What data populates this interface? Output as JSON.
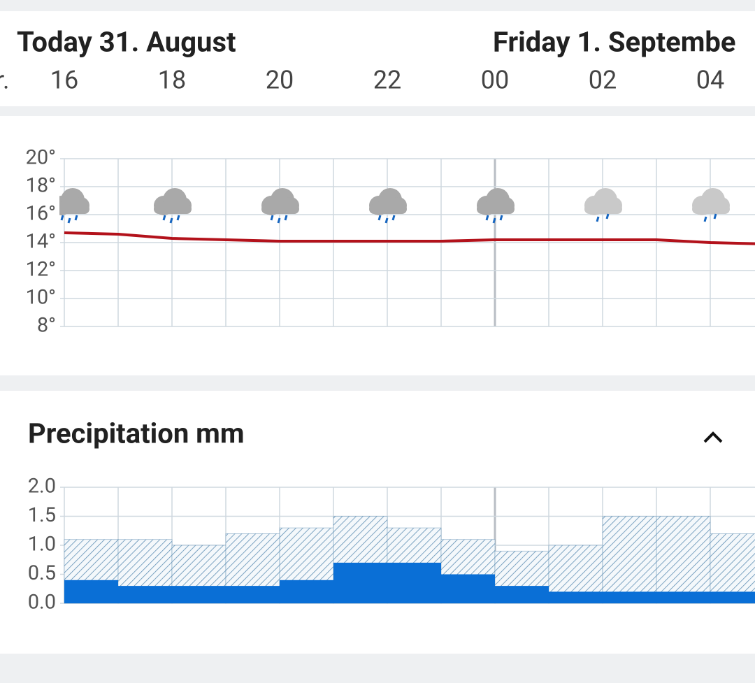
{
  "header": {
    "day_labels": [
      "Today 31. August",
      "Friday 1. Septembe"
    ],
    "hour_unit": "r.",
    "hours": [
      "16",
      "18",
      "20",
      "22",
      "00",
      "02",
      "04"
    ]
  },
  "temperature_chart": {
    "type": "line",
    "color": "#b3121b",
    "values": [
      14.7,
      14.6,
      14.3,
      14.2,
      14.1,
      14.1,
      14.1,
      14.1,
      14.2,
      14.2,
      14.2,
      14.2,
      14.0,
      13.9
    ],
    "ylim": [
      8,
      20
    ],
    "yticks": [
      {
        "value": 8,
        "label": "8°"
      },
      {
        "value": 10,
        "label": "10°"
      },
      {
        "value": 12,
        "label": "12°"
      },
      {
        "value": 14,
        "label": "14°"
      },
      {
        "value": 16,
        "label": "16°"
      },
      {
        "value": 18,
        "label": "18°"
      },
      {
        "value": 20,
        "label": "20°"
      }
    ],
    "grid": true
  },
  "precipitation_chart": {
    "type": "bar",
    "title": "Precipitation mm",
    "series": [
      {
        "color": "#5f8fb4",
        "values": [
          1.1,
          1.1,
          1.0,
          1.2,
          1.3,
          1.5,
          1.3,
          1.1,
          0.9,
          1.0,
          1.5,
          1.5,
          1.2
        ]
      },
      {
        "color": "#0a6fd6",
        "values": [
          0.4,
          0.3,
          0.3,
          0.3,
          0.4,
          0.7,
          0.7,
          0.5,
          0.3,
          0.2,
          0.2,
          0.2,
          0.2
        ]
      }
    ],
    "ylim": [
      0,
      2
    ],
    "yticks": [
      {
        "value": 0,
        "label": "0.0"
      },
      0.5,
      {
        "value": 1,
        "label": "1.0"
      },
      1.5,
      {
        "value": 2,
        "label": "2.0"
      }
    ],
    "grid": true
  }
}
